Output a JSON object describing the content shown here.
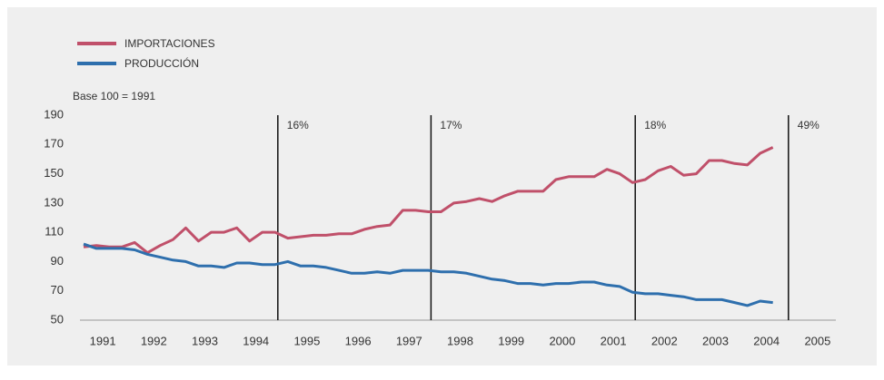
{
  "chart_data": {
    "type": "line",
    "subtitle": "Base 100 = 1991",
    "categories": [
      "1991",
      null,
      null,
      null,
      "1992",
      null,
      null,
      null,
      "1993",
      null,
      null,
      null,
      "1994",
      null,
      null,
      null,
      "1995",
      null,
      null,
      null,
      "1996",
      null,
      null,
      null,
      "1997",
      null,
      null,
      null,
      "1998",
      null,
      null,
      null,
      "1999",
      null,
      null,
      null,
      "2000",
      null,
      null,
      null,
      "2001",
      null,
      null,
      null,
      "2002",
      null,
      null,
      null,
      "2003",
      null,
      null,
      null,
      "2004",
      null,
      null,
      null,
      "2005",
      null,
      null,
      null
    ],
    "series": [
      {
        "name": "IMPORTACIONES",
        "color": "#c0506a",
        "values": [
          100,
          101,
          100,
          100,
          103,
          96,
          101,
          105,
          113,
          104,
          110,
          110,
          113,
          104,
          110,
          110,
          106,
          107,
          108,
          108,
          109,
          109,
          112,
          114,
          115,
          125,
          125,
          124,
          124,
          130,
          131,
          133,
          131,
          135,
          138,
          138,
          138,
          146,
          148,
          148,
          148,
          153,
          150,
          144,
          146,
          152,
          155,
          149,
          150,
          159,
          159,
          157,
          156,
          164,
          168,
          null,
          null,
          null,
          null,
          null
        ]
      },
      {
        "name": "PRODUCCIÓN",
        "color": "#2e6fad",
        "values": [
          102,
          99,
          99,
          99,
          98,
          95,
          93,
          91,
          90,
          87,
          87,
          86,
          89,
          89,
          88,
          88,
          90,
          87,
          87,
          86,
          84,
          82,
          82,
          83,
          82,
          84,
          84,
          84,
          83,
          83,
          82,
          80,
          78,
          77,
          75,
          75,
          74,
          75,
          75,
          76,
          76,
          74,
          73,
          69,
          68,
          68,
          67,
          66,
          64,
          64,
          64,
          62,
          60,
          63,
          62,
          null,
          null,
          null,
          null,
          null
        ]
      }
    ],
    "dividers": [
      {
        "at": "1995",
        "label": "16%"
      },
      {
        "at": "1998",
        "label": "17%"
      },
      {
        "at": "2002",
        "label": "18%"
      },
      {
        "at": "2005",
        "label": "49%"
      }
    ],
    "ylim": [
      50,
      190
    ],
    "yticks": [
      50,
      70,
      90,
      110,
      130,
      150,
      170,
      190
    ],
    "grid": false
  }
}
